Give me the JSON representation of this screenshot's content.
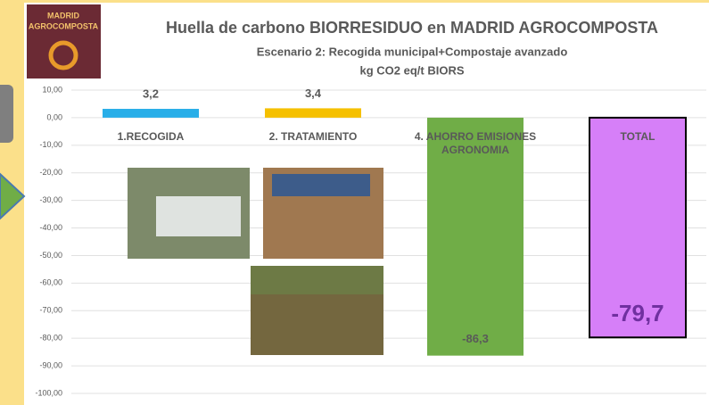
{
  "logo_lines": [
    "MADRID",
    "AGROCOMPOSTA"
  ],
  "chart_data": {
    "type": "bar",
    "title": "Huella de carbono BIORRESIDUO en MADRID AGROCOMPOSTA",
    "subtitle": "Escenario 2: Recogida  municipal+Compostaje  avanzado",
    "y_label": "kg CO2 eq/t BIORS",
    "categories": [
      "1.RECOGIDA",
      "2. TRATAMIENTO",
      "4. AHORRO EMISIONES AGRONOMIA",
      "TOTAL"
    ],
    "values": [
      3.2,
      3.4,
      -86.3,
      -79.7
    ],
    "value_labels": [
      "3,2",
      "3,4",
      "-86,3",
      "-79,7"
    ],
    "colors": [
      "#29aee8",
      "#f5c000",
      "#70ad47",
      "#d67ff8"
    ],
    "ylim": [
      -100,
      10
    ],
    "yticks": [
      {
        "value": 10,
        "label": "10,00"
      },
      {
        "value": 0,
        "label": "0,00"
      },
      {
        "value": -10,
        "label": "-10,00"
      },
      {
        "value": -20,
        "label": "-20,00"
      },
      {
        "value": -30,
        "label": "-30,00"
      },
      {
        "value": -40,
        "label": "-40,00"
      },
      {
        "value": -50,
        "label": "-50,00"
      },
      {
        "value": -60,
        "label": "-60,00"
      },
      {
        "value": -70,
        "label": "-70,00"
      },
      {
        "value": -80,
        "label": "-80,00"
      },
      {
        "value": -90,
        "label": "-90,00"
      },
      {
        "value": -100,
        "label": "-100,00"
      }
    ],
    "grid": true
  }
}
